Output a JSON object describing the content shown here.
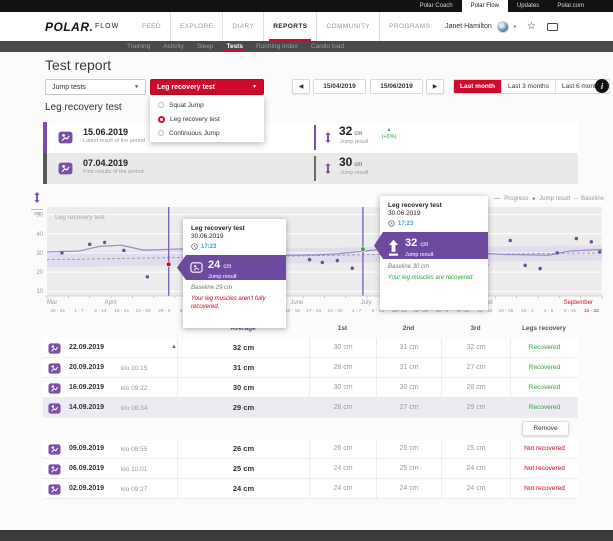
{
  "colors": {
    "red": "#cf0a2c",
    "purple": "#6d4aa0",
    "purple_line": "#9d8dcc",
    "green": "#2ca33b",
    "blue": "#2aa6e0"
  },
  "icons": {
    "caret_down": "▼",
    "caret_small": "▾",
    "prev": "◀",
    "next": "▶",
    "sort": "▲",
    "star": "☆",
    "up_triangle": "▲",
    "info": "i"
  },
  "topbar": {
    "items": [
      {
        "label": "Polar Coach",
        "active": false
      },
      {
        "label": "Polar Flow",
        "active": true
      },
      {
        "label": "Updates",
        "active": false
      },
      {
        "label": "Polar.com",
        "active": false
      }
    ]
  },
  "header": {
    "logo": "POLAR.",
    "app_name": "FLOW",
    "nav": [
      "FEED",
      "EXPLORE",
      "DIARY",
      "REPORTS",
      "COMMUNITY",
      "PROGRAMS"
    ],
    "active_nav": "REPORTS",
    "user_name": "Janet Hamilton"
  },
  "subnav": {
    "items": [
      "Training",
      "Activity",
      "Sleep",
      "Tests",
      "Running Index",
      "Cardio load"
    ],
    "active": "Tests"
  },
  "page": {
    "title": "Test report",
    "section_title": "Leg recovery test"
  },
  "filters": {
    "category": "Jump tests",
    "test": "Leg recovery test",
    "options": [
      "Squat Jump",
      "Leg recovery test",
      "Continuous Jump"
    ],
    "selected_option": "Leg recovery test",
    "date_from": "15/04/2019",
    "date_to": "15/06/2019",
    "ranges": [
      "Last month",
      "Last 3 months",
      "Last 6 months"
    ],
    "active_range": "Last month"
  },
  "summary": {
    "rows": [
      {
        "date": "15.06.2019",
        "caption": "Latest result of the period",
        "value": "32",
        "unit": "cm",
        "label": "Jump result",
        "change": "(+6%)"
      },
      {
        "date": "07.04.2019",
        "caption": "First results of the period",
        "value": "30",
        "unit": "cm",
        "label": "Jump result",
        "change": ""
      }
    ]
  },
  "chart_data": {
    "type": "line",
    "title": "Leg recovery test",
    "ylabel": "cm",
    "ylim": [
      7.5,
      54
    ],
    "yticks": [
      10,
      20,
      30,
      40,
      50
    ],
    "legend": [
      {
        "glyph": "—",
        "label": "Progress"
      },
      {
        "glyph": "●",
        "label": "Jump result"
      },
      {
        "glyph": "- -",
        "label": "Baseline"
      }
    ],
    "weeks": [
      "25 - 31",
      "1 - 7",
      "8 - 14",
      "15 - 21",
      "22 - 28",
      "29 - 5",
      "6 - 12",
      "13 - 19",
      "20 - 26",
      "27 - 2",
      "3 - 9",
      "10 - 16",
      "17 - 23",
      "24 - 30",
      "1 - 7",
      "8 - 14",
      "15 - 21",
      "22 - 28",
      "29 - 4",
      "5 - 11",
      "12 - 18",
      "19 - 25",
      "26 - 1",
      "2 - 8",
      "9 - 15",
      "16 - 22"
    ],
    "week_highlight_last": true,
    "months": [
      {
        "label": "Mar",
        "week": 0
      },
      {
        "label": "April",
        "week": 2.7
      },
      {
        "label": "May",
        "week": 7
      },
      {
        "label": "June",
        "week": 11.4
      },
      {
        "label": "July",
        "week": 14.7
      },
      {
        "label": "August",
        "week": 20
      },
      {
        "label": "September",
        "week": 24.2,
        "highlight": true
      }
    ],
    "series": [
      {
        "name": "Progress",
        "values": [
          30.5,
          31,
          33.5,
          34,
          31.5,
          31.8,
          32.2,
          32,
          31.5,
          30,
          29,
          28.8,
          29,
          29.5,
          30.5,
          31.8,
          32.2,
          32,
          31.8,
          30.2,
          29.8,
          29.2,
          29,
          28.8,
          31,
          31.8
        ]
      },
      {
        "name": "Baseline",
        "values": [
          26.5,
          26.7,
          26.9,
          27.1,
          27.3,
          27.5,
          27.7,
          27.9,
          28,
          28.1,
          28.3,
          28.4,
          28.6,
          28.8,
          29,
          29.2,
          29.3,
          29.4,
          29.5,
          29.5,
          29.5,
          29.5,
          29.6,
          29.7,
          29.9,
          30
        ]
      }
    ],
    "band_halfwidth": 4,
    "jump_results": [
      [
        0.2,
        30
      ],
      [
        1.5,
        34.5
      ],
      [
        2.2,
        35.5
      ],
      [
        3.1,
        31.3
      ],
      [
        4.2,
        17.5
      ],
      [
        7.2,
        31
      ],
      [
        8.3,
        28
      ],
      [
        11.8,
        26.5
      ],
      [
        12.4,
        25
      ],
      [
        13.1,
        26
      ],
      [
        13.8,
        22
      ],
      [
        16.3,
        26
      ],
      [
        17.5,
        37
      ],
      [
        18.2,
        25.5
      ],
      [
        19.3,
        20.8
      ],
      [
        20.1,
        24
      ],
      [
        21.2,
        36.5
      ],
      [
        21.9,
        23.5
      ],
      [
        22.6,
        21.8
      ],
      [
        23.4,
        30
      ],
      [
        24.3,
        37.5
      ],
      [
        25,
        35.8
      ],
      [
        25.4,
        30.5
      ]
    ],
    "markers": [
      {
        "week": 5.2,
        "value": 24,
        "color": "#d0021b"
      },
      {
        "week": 14.3,
        "value": 32,
        "color": "#2ca33b"
      }
    ]
  },
  "tooltips": [
    {
      "title": "Leg recovery test",
      "date": "30.06.2019",
      "time": "17:23",
      "value": "24",
      "unit": "cm",
      "value_label": "Jump result",
      "baseline": "Baseline 29 cm",
      "message": "Your leg muscles aren't fully recovered.",
      "status": "not_recovered"
    },
    {
      "title": "Leg recovery test",
      "date": "30.06.2019",
      "time": "17:23",
      "value": "32",
      "unit": "cm",
      "value_label": "Jump result",
      "baseline": "Baseline 30 cm",
      "message": "Your leg muscles are recovered.",
      "status": "recovered"
    }
  ],
  "table": {
    "headers": {
      "average": "Average",
      "first": "1st",
      "second": "2nd",
      "third": "3rd",
      "status": "Legs recovery"
    },
    "remove_label": "Remove",
    "rows": [
      {
        "date": "22.09.2019",
        "time": "",
        "avg": "32 cm",
        "v1": "30 cm",
        "v2": "31 cm",
        "v3": "32 cm",
        "status": "Recovered",
        "recovered": true,
        "group": 1,
        "highlight": false,
        "sort": true
      },
      {
        "date": "20.09.2019",
        "time": "klo 10:15",
        "avg": "31 cm",
        "v1": "28 cm",
        "v2": "31 cm",
        "v3": "27 cm",
        "status": "Recovered",
        "recovered": true,
        "group": 1,
        "highlight": false
      },
      {
        "date": "16.09.2019",
        "time": "klo 09:22",
        "avg": "30 cm",
        "v1": "30 cm",
        "v2": "30 cm",
        "v3": "28 cm",
        "status": "Recovered",
        "recovered": true,
        "group": 1,
        "highlight": false
      },
      {
        "date": "14.09.2019",
        "time": "klo 08:34",
        "avg": "29 cm",
        "v1": "28 cm",
        "v2": "27 cm",
        "v3": "29 cm",
        "status": "Recovered",
        "recovered": true,
        "group": 1,
        "highlight": true
      },
      {
        "date": "09.09.2019",
        "time": "klo 08:55",
        "avg": "26 cm",
        "v1": "26 cm",
        "v2": "26 cm",
        "v3": "25 cm",
        "status": "Not recovered",
        "recovered": false,
        "group": 2,
        "highlight": false
      },
      {
        "date": "06.09.2019",
        "time": "klo 10:01",
        "avg": "25 cm",
        "v1": "24 cm",
        "v2": "25 cm",
        "v3": "24 cm",
        "status": "Not recovered",
        "recovered": false,
        "group": 2,
        "highlight": false
      },
      {
        "date": "02.09.2019",
        "time": "klo 09:27",
        "avg": "24 cm",
        "v1": "24 cm",
        "v2": "24 cm",
        "v3": "24 cm",
        "status": "Not recovered",
        "recovered": false,
        "group": 2,
        "highlight": false
      }
    ]
  }
}
